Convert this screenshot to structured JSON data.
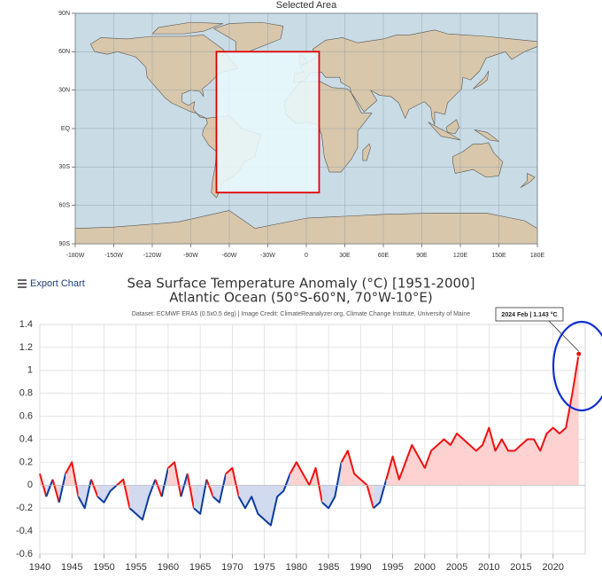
{
  "chart_data": [
    {
      "type": "map",
      "title": "Selected Area",
      "xlim": [
        -180,
        180
      ],
      "xticks": [
        {
          "value": -180,
          "label": "-180W"
        },
        {
          "value": -150,
          "label": "-150W"
        },
        {
          "value": -120,
          "label": "-120W"
        },
        {
          "value": -90,
          "label": "-90W"
        },
        {
          "value": -60,
          "label": "-60W"
        },
        {
          "value": -30,
          "label": "-30W"
        },
        0,
        {
          "value": 30,
          "label": "30E"
        },
        {
          "value": 60,
          "label": "60E"
        },
        {
          "value": 90,
          "label": "90E"
        },
        {
          "value": 120,
          "label": "120E"
        },
        {
          "value": 150,
          "label": "150E"
        },
        {
          "value": 180,
          "label": "180E"
        }
      ],
      "ylim": [
        -90,
        90
      ],
      "yticks": [
        {
          "value": 90,
          "label": "90N"
        },
        {
          "value": 60,
          "label": "60N"
        },
        {
          "value": 30,
          "label": "30N"
        },
        {
          "value": 0,
          "label": "EQ"
        },
        {
          "value": -30,
          "label": "30S"
        },
        {
          "value": -60,
          "label": "60S"
        },
        {
          "value": -90,
          "label": "90S"
        }
      ],
      "grid": true,
      "selection": {
        "lon": [
          -70,
          10
        ],
        "lat": [
          -50,
          60
        ],
        "color": "#e00000"
      }
    },
    {
      "type": "line",
      "title": "Sea Surface Temperature Anomaly (°C) [1951-2000]",
      "subtitle": "Atlantic Ocean (50°S-60°N, 70°W-10°E)",
      "source": "Dataset: ECMWF ERA5 (0.5x0.5 deg) | Image Credit: ClimateReanalyzer.org, Climate Change Institute, University of Maine",
      "export_button": "Export Chart",
      "annotation": "2024 Feb | 1.143 °C",
      "positive_color": "#f01010",
      "negative_color": "#0c3c9c",
      "positive_fill": "#ffd2d2",
      "negative_fill": "#d2daf0",
      "xlim": [
        1940,
        2025
      ],
      "xticks": [
        1940,
        1945,
        1950,
        1955,
        1960,
        1965,
        1970,
        1975,
        1980,
        1985,
        1990,
        1995,
        2000,
        2005,
        2010,
        2015,
        2020
      ],
      "ylim": [
        -0.6,
        1.4
      ],
      "yticks": [
        1.4,
        1.2,
        1,
        0.8,
        0.6,
        0.4,
        0.2,
        0,
        -0.2,
        -0.4,
        -0.6
      ],
      "grid": true,
      "x": [
        1940,
        1941,
        1942,
        1943,
        1944,
        1945,
        1946,
        1947,
        1948,
        1949,
        1950,
        1951,
        1952,
        1953,
        1954,
        1955,
        1956,
        1957,
        1958,
        1959,
        1960,
        1961,
        1962,
        1963,
        1964,
        1965,
        1966,
        1967,
        1968,
        1969,
        1970,
        1971,
        1972,
        1973,
        1974,
        1975,
        1976,
        1977,
        1978,
        1979,
        1980,
        1981,
        1982,
        1983,
        1984,
        1985,
        1986,
        1987,
        1988,
        1989,
        1990,
        1991,
        1992,
        1993,
        1994,
        1995,
        1996,
        1997,
        1998,
        1999,
        2000,
        2001,
        2002,
        2003,
        2004,
        2005,
        2006,
        2007,
        2008,
        2009,
        2010,
        2011,
        2012,
        2013,
        2014,
        2015,
        2016,
        2017,
        2018,
        2019,
        2020,
        2021,
        2022,
        2023,
        2024
      ],
      "values": [
        0.1,
        -0.1,
        0.05,
        -0.15,
        0.1,
        0.2,
        -0.1,
        -0.2,
        0.05,
        -0.1,
        -0.15,
        -0.05,
        0.0,
        0.05,
        -0.2,
        -0.25,
        -0.3,
        -0.1,
        0.05,
        -0.1,
        0.15,
        0.2,
        -0.1,
        0.1,
        -0.2,
        -0.25,
        0.05,
        -0.1,
        -0.15,
        0.1,
        0.15,
        -0.1,
        -0.2,
        -0.1,
        -0.25,
        -0.3,
        -0.35,
        -0.1,
        -0.05,
        0.1,
        0.2,
        0.1,
        0.0,
        0.15,
        -0.15,
        -0.2,
        -0.1,
        0.2,
        0.3,
        0.1,
        0.05,
        0.0,
        -0.2,
        -0.15,
        0.05,
        0.25,
        0.05,
        0.2,
        0.35,
        0.25,
        0.15,
        0.3,
        0.35,
        0.4,
        0.35,
        0.45,
        0.4,
        0.35,
        0.3,
        0.35,
        0.5,
        0.3,
        0.4,
        0.3,
        0.3,
        0.35,
        0.4,
        0.4,
        0.3,
        0.45,
        0.5,
        0.45,
        0.5,
        0.8,
        1.143
      ]
    }
  ]
}
